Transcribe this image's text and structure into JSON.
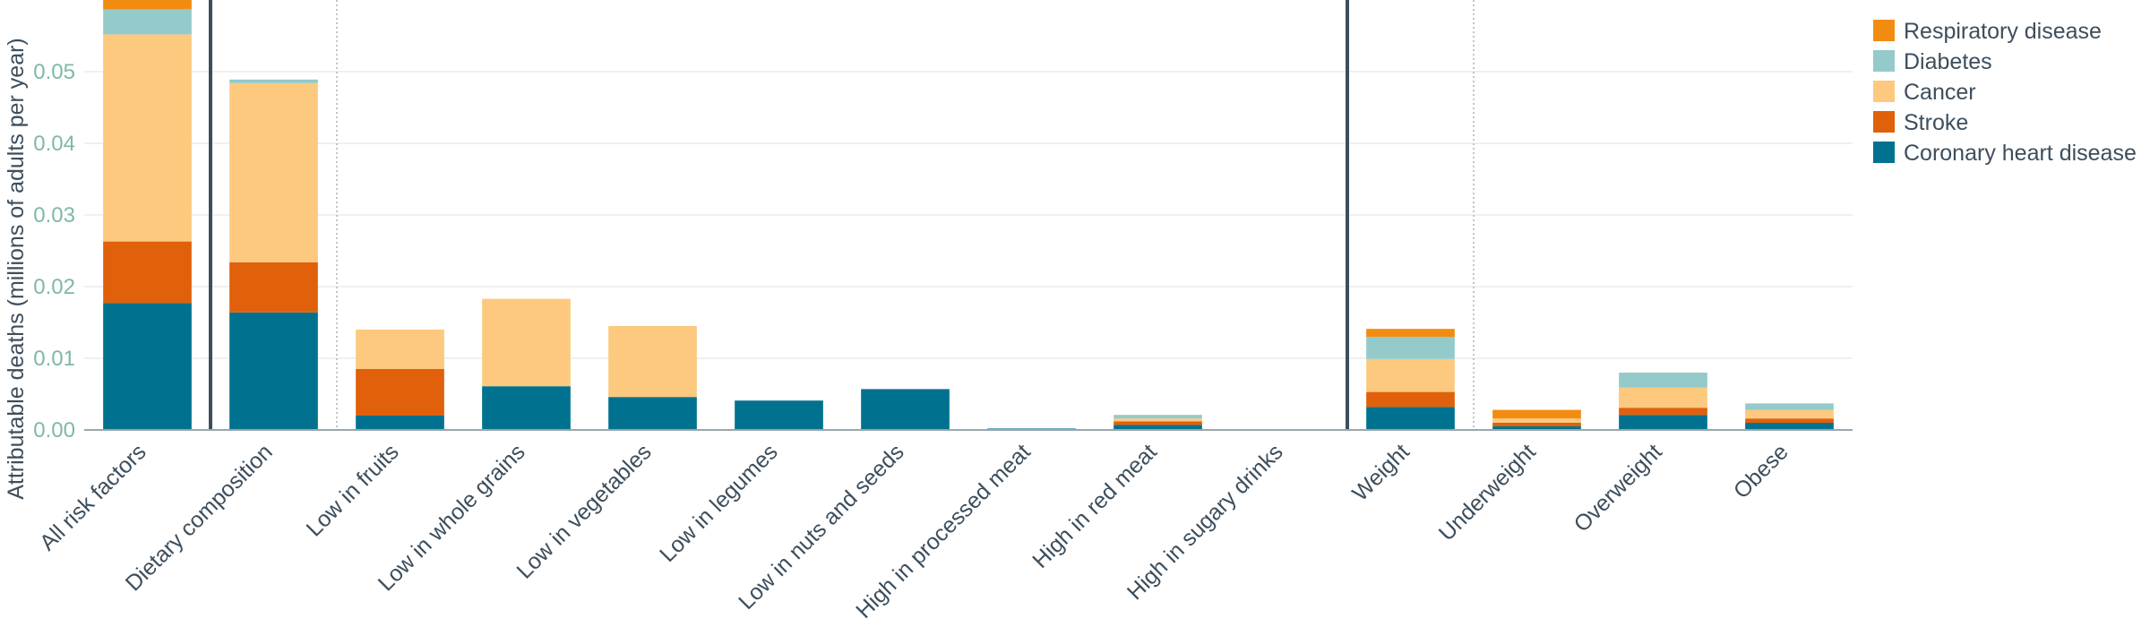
{
  "chart_data": {
    "type": "bar",
    "stacked": true,
    "ylabel": "Attributable deaths (millions of adults per year)",
    "ylim": [
      0,
      0.06
    ],
    "yticks": [
      "0.00",
      "0.01",
      "0.02",
      "0.03",
      "0.04",
      "0.05"
    ],
    "ytick_values": [
      0,
      0.01,
      0.02,
      0.03,
      0.04,
      0.05
    ],
    "grid": true,
    "legend_position": "top-right",
    "categories": [
      "All risk factors",
      "Dietary composition",
      "Low in fruits",
      "Low in whole grains",
      "Low in vegetables",
      "Low in legumes",
      "Low in nuts and seeds",
      "High in processed meat",
      "High in red meat",
      "High in sugary drinks",
      "Weight",
      "Underweight",
      "Overweight",
      "Obese"
    ],
    "series": [
      {
        "name": "Coronary heart disease",
        "color": "#00728f",
        "values": [
          0.0177,
          0.0164,
          0.002,
          0.0061,
          0.0046,
          0.0041,
          0.0057,
          0.0002,
          0.0007,
          0.0001,
          0.0032,
          0.0005,
          0.0021,
          0.001
        ]
      },
      {
        "name": "Stroke",
        "color": "#e0600c",
        "values": [
          0.0086,
          0.007,
          0.0065,
          0.0,
          0.0,
          0.0,
          0.0,
          0.0,
          0.0005,
          0.0,
          0.0021,
          0.0005,
          0.001,
          0.0006
        ]
      },
      {
        "name": "Cancer",
        "color": "#fcc97e",
        "values": [
          0.0289,
          0.025,
          0.0055,
          0.0122,
          0.0099,
          0.0,
          0.0,
          0.0,
          0.0004,
          0.0,
          0.0046,
          0.0006,
          0.0028,
          0.0012
        ]
      },
      {
        "name": "Diabetes",
        "color": "#95cacb",
        "values": [
          0.0035,
          0.0005,
          0.0,
          0.0,
          0.0,
          0.0,
          0.0,
          0.0,
          0.0005,
          0.0,
          0.0031,
          0.0,
          0.0021,
          0.0009
        ]
      },
      {
        "name": "Respiratory disease",
        "color": "#f28c11",
        "values": [
          0.0013,
          0.0,
          0.0,
          0.0,
          0.0,
          0.0,
          0.0,
          0.0,
          0.0,
          0.0,
          0.0011,
          0.0012,
          0.0,
          0.0
        ]
      }
    ],
    "legend_order": [
      "Respiratory disease",
      "Diabetes",
      "Cancer",
      "Stroke",
      "Coronary heart disease"
    ],
    "group_separators": [
      {
        "between": [
          "All risk factors",
          "Dietary composition"
        ],
        "style": "solid"
      },
      {
        "between": [
          "Dietary composition",
          "Low in fruits"
        ],
        "style": "dotted"
      },
      {
        "between": [
          "High in sugary drinks",
          "Weight"
        ],
        "style": "solid"
      },
      {
        "between": [
          "Weight",
          "Underweight"
        ],
        "style": "dotted"
      }
    ]
  }
}
